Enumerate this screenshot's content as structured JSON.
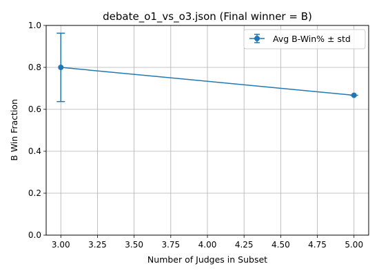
{
  "chart_data": {
    "type": "line",
    "title": "debate_o1_vs_o3.json (Final winner = B)",
    "xlabel": "Number of Judges in Subset",
    "ylabel": "B Win Fraction",
    "xlim": [
      2.9,
      5.1
    ],
    "ylim": [
      0.0,
      1.0
    ],
    "x_ticks": [
      3.0,
      3.25,
      3.5,
      3.75,
      4.0,
      4.25,
      4.5,
      4.75,
      5.0
    ],
    "x_tick_labels": [
      "3.00",
      "3.25",
      "3.50",
      "3.75",
      "4.00",
      "4.25",
      "4.50",
      "4.75",
      "5.00"
    ],
    "y_ticks": [
      0.0,
      0.2,
      0.4,
      0.6,
      0.8,
      1.0
    ],
    "y_tick_labels": [
      "0.0",
      "0.2",
      "0.4",
      "0.6",
      "0.8",
      "1.0"
    ],
    "grid": true,
    "legend_position": "top-right",
    "series": [
      {
        "name": "Avg B-Win% ± std",
        "color": "#1f77b4",
        "x": [
          3,
          5
        ],
        "y": [
          0.8,
          0.667
        ],
        "err": [
          0.163,
          0.0
        ]
      }
    ]
  }
}
